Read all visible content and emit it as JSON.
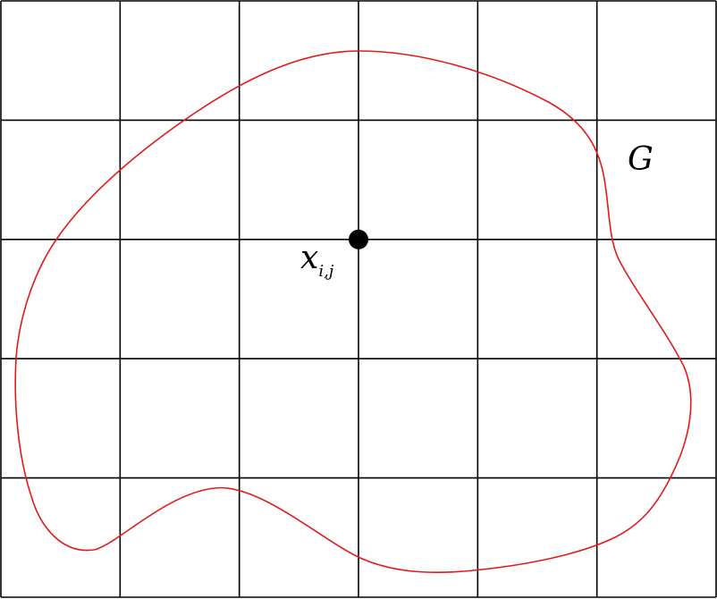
{
  "diagram": {
    "grid": {
      "columns": 6,
      "rows": 5,
      "line_color": "#000000"
    },
    "region": {
      "label": "G",
      "curve_color": "#e31a1c"
    },
    "node": {
      "symbol": "x",
      "subscript": "i,j",
      "column_index": 3,
      "row_index": 2,
      "color": "#000000"
    }
  }
}
